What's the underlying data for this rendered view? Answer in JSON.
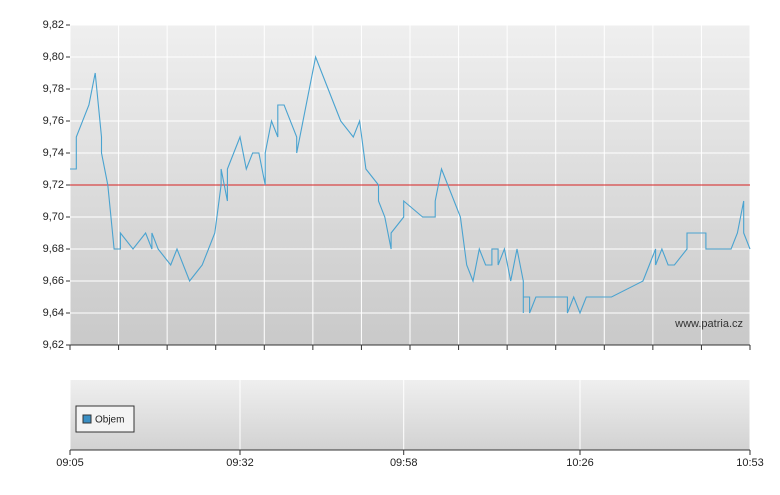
{
  "chart_data": {
    "type": "line",
    "x": [
      "09:05",
      "09:06",
      "09:06",
      "09:08",
      "09:09",
      "09:10",
      "09:10",
      "09:11",
      "09:12",
      "09:13",
      "09:13",
      "09:15",
      "09:17",
      "09:18",
      "09:18",
      "09:19",
      "09:21",
      "09:22",
      "09:24",
      "09:26",
      "09:27",
      "09:28",
      "09:29",
      "09:29",
      "09:30",
      "09:30",
      "09:32",
      "09:33",
      "09:34",
      "09:35",
      "09:36",
      "09:36",
      "09:37",
      "09:38",
      "09:38",
      "09:39",
      "09:41",
      "09:41",
      "09:42",
      "09:43",
      "09:43",
      "09:44",
      "09:47",
      "09:48",
      "09:48",
      "09:50",
      "09:51",
      "09:52",
      "09:54",
      "09:54",
      "09:55",
      "09:56",
      "09:56",
      "09:58",
      "09:58",
      "10:01",
      "10:03",
      "10:03",
      "10:04",
      "10:04",
      "10:05",
      "10:07",
      "10:07",
      "10:08",
      "10:09",
      "10:10",
      "10:11",
      "10:12",
      "10:12",
      "10:13",
      "10:13",
      "10:14",
      "10:15",
      "10:15",
      "10:16",
      "10:17",
      "10:17",
      "10:17",
      "10:18",
      "10:18",
      "10:19",
      "10:24",
      "10:24",
      "10:25",
      "10:26",
      "10:27",
      "10:31",
      "10:36",
      "10:37",
      "10:38",
      "10:38",
      "10:39",
      "10:40",
      "10:41",
      "10:43",
      "10:43",
      "10:46",
      "10:46",
      "10:50",
      "10:51",
      "10:52",
      "10:52",
      "10:53"
    ],
    "series": [
      {
        "color": "#4aa3d0",
        "values": [
          9.73,
          9.73,
          9.75,
          9.77,
          9.79,
          9.75,
          9.74,
          9.72,
          9.68,
          9.68,
          9.69,
          9.68,
          9.69,
          9.68,
          9.69,
          9.68,
          9.67,
          9.68,
          9.66,
          9.67,
          9.68,
          9.69,
          9.72,
          9.73,
          9.71,
          9.73,
          9.75,
          9.73,
          9.74,
          9.74,
          9.72,
          9.74,
          9.76,
          9.75,
          9.77,
          9.77,
          9.75,
          9.74,
          9.76,
          9.78,
          9.78,
          9.8,
          9.77,
          9.76,
          9.76,
          9.75,
          9.76,
          9.73,
          9.72,
          9.71,
          9.7,
          9.68,
          9.69,
          9.7,
          9.71,
          9.7,
          9.7,
          9.71,
          9.73,
          9.73,
          9.72,
          9.7,
          9.7,
          9.67,
          9.66,
          9.68,
          9.67,
          9.67,
          9.68,
          9.68,
          9.67,
          9.68,
          9.66,
          9.66,
          9.68,
          9.66,
          9.64,
          9.65,
          9.65,
          9.64,
          9.65,
          9.65,
          9.64,
          9.65,
          9.64,
          9.65,
          9.65,
          9.66,
          9.67,
          9.68,
          9.67,
          9.68,
          9.67,
          9.67,
          9.68,
          9.69,
          9.69,
          9.68,
          9.68,
          9.69,
          9.71,
          9.69,
          9.68
        ]
      }
    ],
    "xlim": [
      "09:05",
      "10:53"
    ],
    "xticks": [
      "09:05",
      "09:32",
      "09:58",
      "10:26",
      "10:53"
    ],
    "ylim": [
      9.62,
      9.82
    ],
    "yticks": [
      {
        "value": 9.62,
        "label": "9,62"
      },
      {
        "value": 9.64,
        "label": "9,64"
      },
      {
        "value": 9.66,
        "label": "9,66"
      },
      {
        "value": 9.68,
        "label": "9,68"
      },
      {
        "value": 9.7,
        "label": "9,70"
      },
      {
        "value": 9.72,
        "label": "9,72"
      },
      {
        "value": 9.74,
        "label": "9,74"
      },
      {
        "value": 9.76,
        "label": "9,76"
      },
      {
        "value": 9.78,
        "label": "9,78"
      },
      {
        "value": 9.8,
        "label": "9,80"
      },
      {
        "value": 9.82,
        "label": "9,82"
      }
    ],
    "reference_line": {
      "value": 9.72,
      "color": "#d62020"
    },
    "grid": true,
    "watermark": "www.patria.cz",
    "legend": [
      {
        "name": "Objem",
        "color": "#3a8fc4"
      }
    ]
  }
}
